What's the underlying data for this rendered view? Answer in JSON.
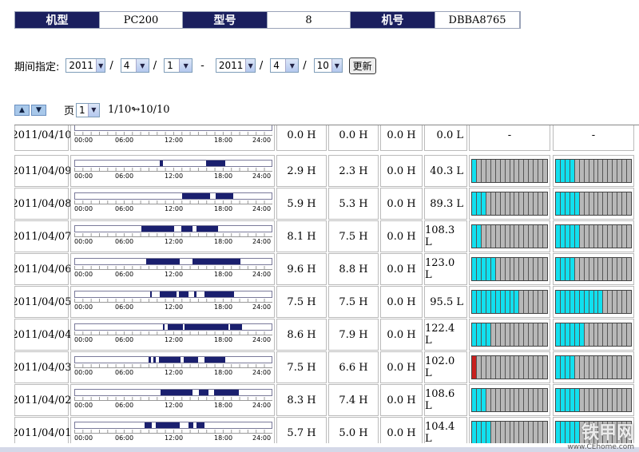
{
  "header": {
    "model_label": "机型",
    "model_value": "PC200",
    "type_label": "型号",
    "type_value": "8",
    "serial_label": "机号",
    "serial_value": "DBBA8765"
  },
  "period": {
    "label": "期间指定:",
    "from_year": "2011",
    "from_month": "4",
    "from_day": "1",
    "dash": "-",
    "to_year": "2011",
    "to_month": "4",
    "to_day": "10",
    "slash": "/",
    "update_button": "更新"
  },
  "pager": {
    "page_label": "页",
    "page_value": "1",
    "range": "1/10↬10/10"
  },
  "timeline_labels": [
    "00:00",
    "06:00",
    "12:00",
    "18:00",
    "24:00"
  ],
  "rows": [
    {
      "date": "2011/04/10",
      "h1": "0.0 H",
      "h2": "0.0 H",
      "h3": "0.0 H",
      "fuel": "0.0 L",
      "segs": [],
      "g1": "-",
      "g2": "-",
      "g1_on": 0,
      "g2_on": 0
    },
    {
      "date": "2011/04/09",
      "h1": "2.9 H",
      "h2": "2.3 H",
      "h3": "0.0 H",
      "fuel": "40.3 L",
      "segs": [
        [
          10.3,
          10.7
        ],
        [
          16.0,
          18.3
        ]
      ],
      "g1_on": 1,
      "g2_on": 4
    },
    {
      "date": "2011/04/08",
      "h1": "5.9 H",
      "h2": "5.3 H",
      "h3": "0.0 H",
      "fuel": "89.3 L",
      "segs": [
        [
          13.1,
          16.5
        ],
        [
          17.2,
          19.3
        ]
      ],
      "g1_on": 3,
      "g2_on": 5
    },
    {
      "date": "2011/04/07",
      "h1": "8.1 H",
      "h2": "7.5 H",
      "h3": "0.0 H",
      "fuel": "108.3 L",
      "segs": [
        [
          8.1,
          12.1
        ],
        [
          13.0,
          14.3
        ],
        [
          14.8,
          17.5
        ]
      ],
      "g1_on": 2,
      "g2_on": 5
    },
    {
      "date": "2011/04/06",
      "h1": "9.6 H",
      "h2": "8.8 H",
      "h3": "0.0 H",
      "fuel": "123.0 L",
      "segs": [
        [
          8.7,
          12.8
        ],
        [
          14.3,
          20.2
        ]
      ],
      "g1_on": 5,
      "g2_on": 4
    },
    {
      "date": "2011/04/05",
      "h1": "7.5 H",
      "h2": "7.5 H",
      "h3": "0.0 H",
      "fuel": "95.5 L",
      "segs": [
        [
          9.2,
          9.4
        ],
        [
          10.3,
          12.4
        ],
        [
          12.7,
          13.9
        ],
        [
          14.5,
          14.8
        ],
        [
          15.8,
          19.4
        ]
      ],
      "g1_on": 10,
      "g2_on": 10
    },
    {
      "date": "2011/04/04",
      "h1": "8.6 H",
      "h2": "7.9 H",
      "h3": "0.0 H",
      "fuel": "122.4 L",
      "segs": [
        [
          10.7,
          10.9
        ],
        [
          11.3,
          13.2
        ],
        [
          13.4,
          18.7
        ],
        [
          18.9,
          20.4
        ]
      ],
      "g1_on": 4,
      "g2_on": 6
    },
    {
      "date": "2011/04/03",
      "h1": "7.5 H",
      "h2": "6.6 H",
      "h3": "0.0 H",
      "fuel": "102.0 L",
      "segs": [
        [
          9.0,
          9.3
        ],
        [
          9.6,
          9.9
        ],
        [
          10.2,
          12.9
        ],
        [
          13.3,
          15.0
        ],
        [
          15.8,
          18.3
        ]
      ],
      "g1_red": true,
      "g1_on": 0,
      "g2_on": 4
    },
    {
      "date": "2011/04/02",
      "h1": "8.3 H",
      "h2": "7.4 H",
      "h3": "0.0 H",
      "fuel": "108.6 L",
      "segs": [
        [
          10.4,
          14.3
        ],
        [
          15.1,
          16.3
        ],
        [
          17.0,
          20.0
        ]
      ],
      "g1_on": 3,
      "g2_on": 5
    },
    {
      "date": "2011/04/01",
      "h1": "5.7 H",
      "h2": "5.0 H",
      "h3": "0.0 H",
      "fuel": "104.4 L",
      "segs": [
        [
          8.5,
          9.4
        ],
        [
          9.9,
          12.8
        ],
        [
          13.9,
          14.4
        ],
        [
          14.8,
          15.8
        ]
      ],
      "g1_on": 4,
      "g2_on": 5
    }
  ],
  "gauge_colors": {
    "on": "#11e0ef",
    "off": "#b8b8b8",
    "red": "#c8201e"
  },
  "icons": [
    "sort-up-icon",
    "sort-down-icon"
  ]
}
